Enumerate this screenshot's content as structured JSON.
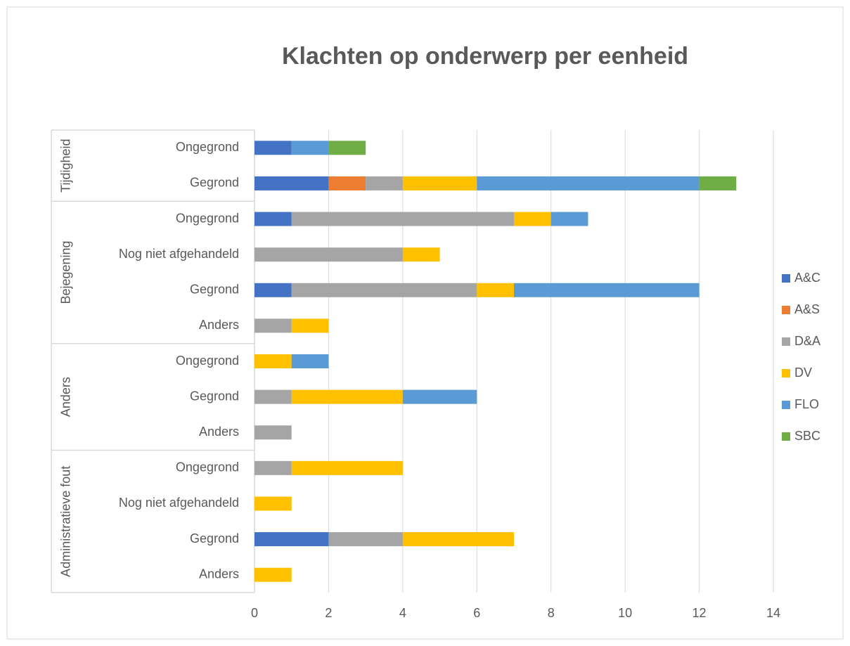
{
  "chart_data": {
    "type": "stacked_barh",
    "title": "Klachten op onderwerp per eenheid",
    "category_groups": [
      {
        "name": "Tijdigheid",
        "categories": [
          "Ongegrond",
          "Gegrond"
        ]
      },
      {
        "name": "Bejegening",
        "categories": [
          "Ongegrond",
          "Nog niet afgehandeld",
          "Gegrond",
          "Anders"
        ]
      },
      {
        "name": "Anders",
        "categories": [
          "Ongegrond",
          "Gegrond",
          "Anders"
        ]
      },
      {
        "name": "Administratieve fout",
        "categories": [
          "Ongegrond",
          "Nog niet afgehandeld",
          "Gegrond",
          "Anders"
        ]
      }
    ],
    "series": [
      {
        "name": "A&C",
        "color": "#4472c4",
        "values": [
          1,
          2,
          1,
          null,
          1,
          null,
          null,
          null,
          null,
          null,
          null,
          2,
          null
        ]
      },
      {
        "name": "A&S",
        "color": "#ed7d31",
        "values": [
          null,
          1,
          null,
          null,
          null,
          null,
          null,
          null,
          null,
          null,
          null,
          null,
          null
        ]
      },
      {
        "name": "D&A",
        "color": "#a5a5a5",
        "values": [
          null,
          1,
          6,
          4,
          5,
          1,
          null,
          1,
          1,
          1,
          null,
          2,
          null
        ]
      },
      {
        "name": "DV",
        "color": "#ffc000",
        "values": [
          null,
          2,
          1,
          1,
          1,
          1,
          1,
          3,
          null,
          3,
          1,
          3,
          1
        ]
      },
      {
        "name": "FLO",
        "color": "#5b9bd5",
        "values": [
          1,
          6,
          1,
          null,
          5,
          null,
          1,
          2,
          null,
          null,
          null,
          null,
          null
        ]
      },
      {
        "name": "SBC",
        "color": "#70ad47",
        "values": [
          1,
          1,
          null,
          null,
          null,
          null,
          null,
          null,
          null,
          null,
          null,
          null,
          null
        ]
      }
    ],
    "xlim": [
      0,
      14
    ],
    "xticks": [
      0,
      2,
      4,
      6,
      8,
      10,
      12,
      14
    ],
    "grid": true,
    "legend": "right"
  }
}
